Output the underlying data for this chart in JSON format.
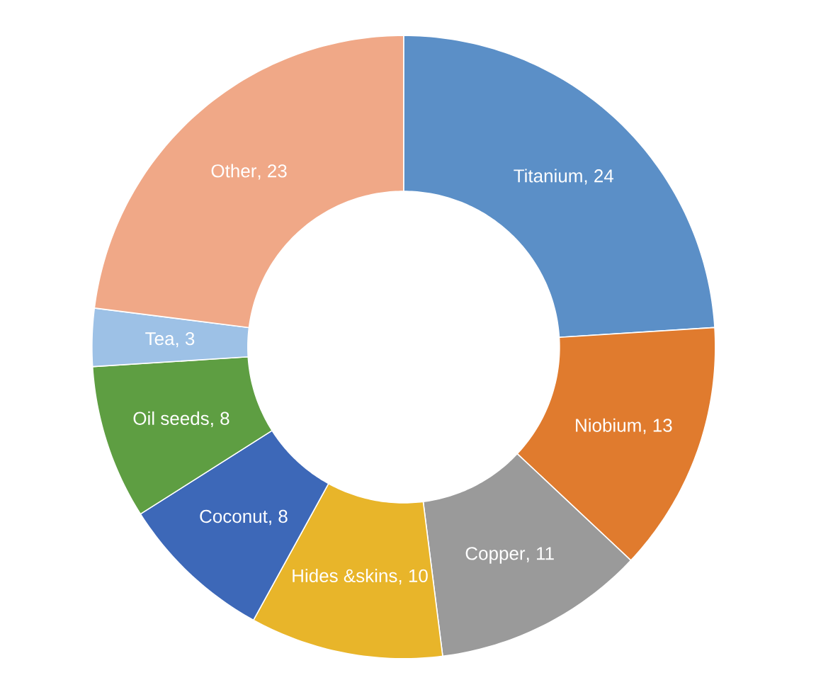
{
  "chart_data": {
    "type": "donut",
    "categories": [
      "Titanium",
      "Niobium",
      "Copper",
      "Hides &skins",
      "Coconut",
      "Oil seeds",
      "Tea",
      "Other"
    ],
    "values": [
      24,
      13,
      11,
      10,
      8,
      8,
      3,
      23
    ],
    "colors": [
      "#5b8fc7",
      "#e07b2e",
      "#9a9a9a",
      "#e8b52a",
      "#3d68b8",
      "#5e9e42",
      "#9dc1e6",
      "#f0a887"
    ],
    "value_labels": [
      ", 24",
      ", 13",
      ", 11",
      ", 10",
      ", 8",
      ", 8",
      ", 3",
      ", 23"
    ]
  }
}
